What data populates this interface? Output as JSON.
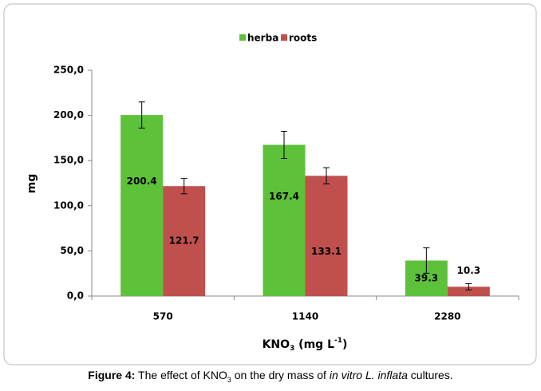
{
  "chart_data": {
    "type": "bar",
    "categories": [
      "570",
      "1140",
      "2280"
    ],
    "series": [
      {
        "name": "herba",
        "color": "#5dc13a",
        "values": [
          200.4,
          167.4,
          39.3
        ],
        "errors": [
          14.5,
          15,
          14
        ]
      },
      {
        "name": "roots",
        "color": "#c0504d",
        "values": [
          121.7,
          133.1,
          10.3
        ],
        "errors": [
          8.5,
          9,
          3.5
        ]
      }
    ],
    "ylim": [
      0,
      250
    ],
    "yticks": [
      {
        "value": 0,
        "label": "0,0"
      },
      {
        "value": 50,
        "label": "50,0"
      },
      {
        "value": 100,
        "label": "100,0"
      },
      {
        "value": 150,
        "label": "150,0"
      },
      {
        "value": 200,
        "label": "200,0"
      },
      {
        "value": 250,
        "label": "250,0"
      }
    ],
    "ylabel": "mg",
    "xlabel": [
      "KNO",
      "3",
      " (mg L",
      "-1",
      ")"
    ],
    "legend": "top"
  },
  "caption": {
    "label": "Figure 4:",
    "parts": [
      " The effect of KNO",
      "3",
      " on the dry mass of ",
      "in vitro L. inflata",
      " cultures."
    ]
  }
}
